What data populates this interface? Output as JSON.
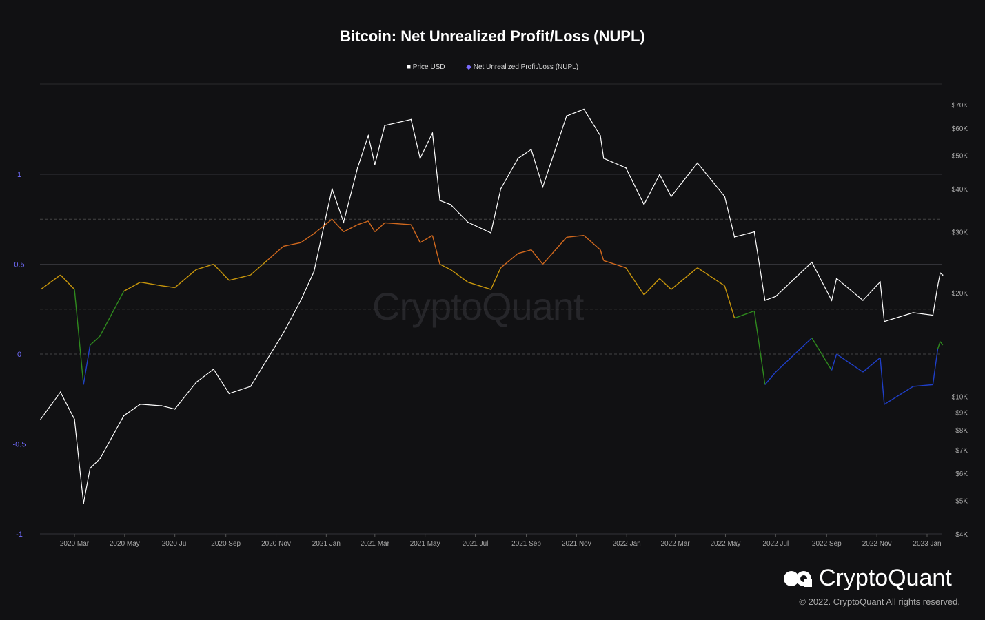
{
  "chart_data": {
    "type": "line",
    "title": "Bitcoin: Net Unrealized Profit/Loss (NUPL)",
    "legend": [
      "Price USD",
      "Net Unrealized Profit/Loss (NUPL)"
    ],
    "legend_placement": "top-center",
    "colors": {
      "price": "#ffffff",
      "nupl_marker": "#7b6cff",
      "capitulation": "#1f3fc8",
      "hope_fear": "#2f8a1e",
      "optimism_anxiety": "#c8960c",
      "belief_denial": "#d2691e",
      "left_axis": "#6f6af8"
    },
    "left_axis": {
      "ticks": [
        "1",
        "0.5",
        "0",
        "-0.5",
        "-1"
      ],
      "values": [
        1,
        0.5,
        0,
        -0.5,
        -1
      ],
      "ylim": [
        -1,
        1.5
      ]
    },
    "right_axis": {
      "scale": "log",
      "ticks": [
        "$70K",
        "$60K",
        "$50K",
        "$40K",
        "$30K",
        "$20K",
        "$10K",
        "$9K",
        "$8K",
        "$7K",
        "$6K",
        "$5K",
        "$4K"
      ],
      "values": [
        70000,
        60000,
        50000,
        40000,
        30000,
        20000,
        10000,
        9000,
        8000,
        7000,
        6000,
        5000,
        4000
      ]
    },
    "x_ticks": [
      "2020 Mar",
      "2020 May",
      "2020 Jul",
      "2020 Sep",
      "2020 Nov",
      "2021 Jan",
      "2021 Mar",
      "2021 May",
      "2021 Jul",
      "2021 Sep",
      "2021 Nov",
      "2022 Jan",
      "2022 Mar",
      "2022 May",
      "2022 Jul",
      "2022 Sep",
      "2022 Nov",
      "2023 Jan"
    ],
    "x_tick_dates": [
      "2020-03-01",
      "2020-05-01",
      "2020-07-01",
      "2020-09-01",
      "2020-11-01",
      "2021-01-01",
      "2021-03-01",
      "2021-05-01",
      "2021-07-01",
      "2021-09-01",
      "2021-11-01",
      "2022-01-01",
      "2022-03-01",
      "2022-05-01",
      "2022-07-01",
      "2022-09-01",
      "2022-11-01",
      "2023-01-01"
    ],
    "dates": [
      "2020-01-20",
      "2020-02-13",
      "2020-03-01",
      "2020-03-12",
      "2020-03-20",
      "2020-04-01",
      "2020-04-30",
      "2020-05-20",
      "2020-06-15",
      "2020-07-01",
      "2020-07-27",
      "2020-08-17",
      "2020-09-05",
      "2020-10-01",
      "2020-10-21",
      "2020-11-10",
      "2020-12-01",
      "2020-12-17",
      "2021-01-08",
      "2021-01-22",
      "2021-02-08",
      "2021-02-21",
      "2021-03-01",
      "2021-03-13",
      "2021-04-14",
      "2021-04-25",
      "2021-05-10",
      "2021-05-19",
      "2021-06-01",
      "2021-06-22",
      "2021-07-20",
      "2021-08-01",
      "2021-08-22",
      "2021-09-07",
      "2021-09-21",
      "2021-10-20",
      "2021-11-10",
      "2021-11-30",
      "2021-12-04",
      "2021-12-31",
      "2022-01-22",
      "2022-02-10",
      "2022-02-24",
      "2022-03-28",
      "2022-04-30",
      "2022-05-12",
      "2022-06-05",
      "2022-06-18",
      "2022-07-01",
      "2022-08-14",
      "2022-09-07",
      "2022-09-13",
      "2022-10-15",
      "2022-11-05",
      "2022-11-10",
      "2022-12-15",
      "2023-01-08",
      "2023-01-14",
      "2023-01-17",
      "2023-01-20"
    ],
    "series": [
      {
        "name": "Price USD",
        "values": [
          8600,
          10300,
          8600,
          4900,
          6200,
          6600,
          8800,
          9500,
          9400,
          9200,
          11000,
          12000,
          10200,
          10700,
          12800,
          15300,
          19000,
          23000,
          40000,
          32000,
          46000,
          57000,
          47000,
          61000,
          63500,
          49000,
          58000,
          37000,
          36000,
          32000,
          29800,
          40000,
          49000,
          52000,
          40500,
          65000,
          68000,
          57000,
          49000,
          46000,
          36000,
          44000,
          38000,
          47500,
          38000,
          29000,
          30000,
          19000,
          19500,
          24500,
          19000,
          22000,
          19000,
          21500,
          16500,
          17500,
          17200,
          21000,
          22800,
          22500
        ]
      },
      {
        "name": "Net Unrealized Profit/Loss (NUPL)",
        "values": [
          0.36,
          0.44,
          0.36,
          -0.17,
          0.05,
          0.1,
          0.35,
          0.4,
          0.38,
          0.37,
          0.47,
          0.5,
          0.41,
          0.44,
          0.52,
          0.6,
          0.62,
          0.67,
          0.75,
          0.68,
          0.72,
          0.74,
          0.68,
          0.73,
          0.72,
          0.62,
          0.66,
          0.5,
          0.47,
          0.4,
          0.36,
          0.48,
          0.56,
          0.58,
          0.5,
          0.65,
          0.66,
          0.58,
          0.52,
          0.48,
          0.33,
          0.42,
          0.36,
          0.48,
          0.38,
          0.2,
          0.24,
          -0.17,
          -0.1,
          0.09,
          -0.09,
          0,
          -0.1,
          -0.02,
          -0.28,
          -0.18,
          -0.17,
          0.03,
          0.07,
          0.05
        ]
      }
    ]
  },
  "watermark": "CryptoQuant",
  "logo_text": "CryptoQuant",
  "copyright": "© 2022. CryptoQuant All rights reserved."
}
